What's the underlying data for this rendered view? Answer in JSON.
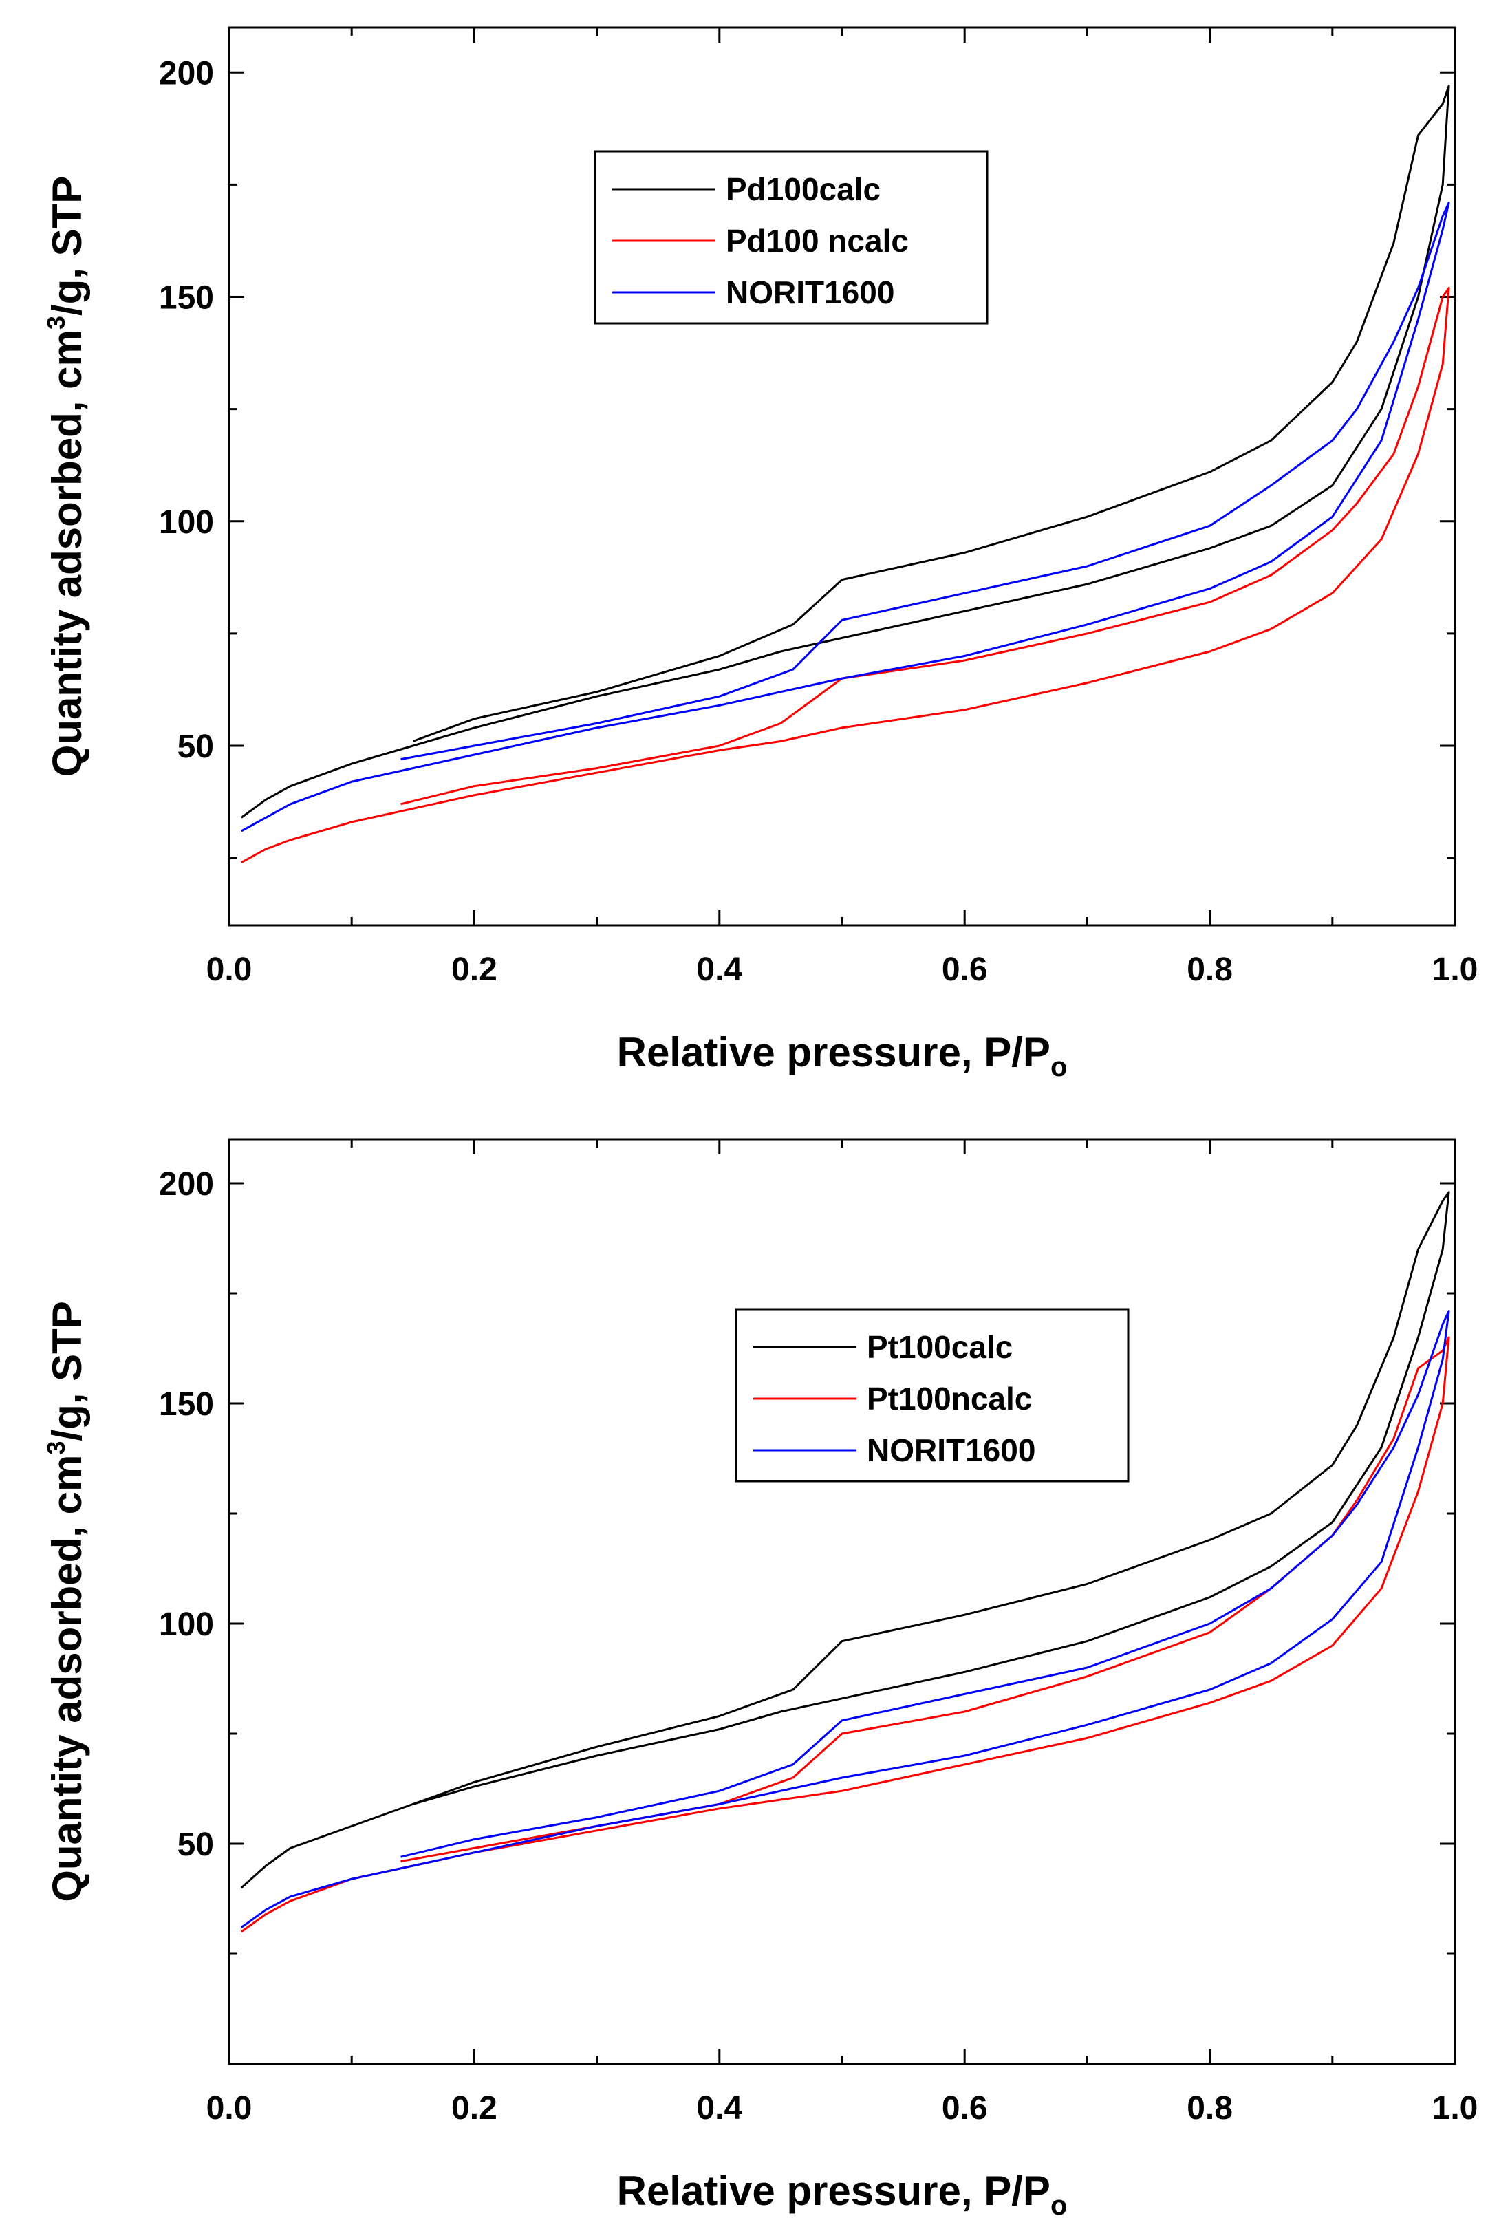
{
  "chart_data": [
    {
      "type": "line",
      "panel": "top",
      "xlabel": "Relative pressure, P/P",
      "xlabel_sub": "o",
      "ylabel_parts": [
        "Quantity adsorbed, cm",
        "3",
        "/g, STP"
      ],
      "xlim": [
        0.0,
        1.0
      ],
      "ylim": [
        10,
        210
      ],
      "xticks": [
        "0.0",
        "0.2",
        "0.4",
        "0.6",
        "0.8",
        "1.0"
      ],
      "yticks": [
        "50",
        "100",
        "150",
        "200"
      ],
      "legend_position": "top-center",
      "series": [
        {
          "name": "Pd100calc",
          "color": "#000000",
          "x": [
            0.01,
            0.03,
            0.05,
            0.1,
            0.15,
            0.2,
            0.3,
            0.4,
            0.45,
            0.5,
            0.6,
            0.7,
            0.8,
            0.85,
            0.9,
            0.94,
            0.97,
            0.99,
            0.995,
            0.99,
            0.97,
            0.95,
            0.92,
            0.9,
            0.85,
            0.8,
            0.7,
            0.6,
            0.5,
            0.46,
            0.4,
            0.3,
            0.2,
            0.15
          ],
          "y": [
            34,
            38,
            41,
            46,
            50,
            54,
            61,
            67,
            71,
            74,
            80,
            86,
            94,
            99,
            108,
            125,
            150,
            175,
            197,
            193,
            186,
            162,
            140,
            131,
            118,
            111,
            101,
            93,
            87,
            77,
            70,
            62,
            56,
            51
          ]
        },
        {
          "name": "Pd100 ncalc",
          "color": "#ff0000",
          "x": [
            0.01,
            0.03,
            0.05,
            0.1,
            0.15,
            0.2,
            0.3,
            0.4,
            0.45,
            0.5,
            0.6,
            0.7,
            0.8,
            0.85,
            0.9,
            0.94,
            0.97,
            0.99,
            0.995,
            0.99,
            0.97,
            0.95,
            0.92,
            0.9,
            0.85,
            0.8,
            0.7,
            0.6,
            0.5,
            0.45,
            0.4,
            0.3,
            0.2,
            0.14
          ],
          "y": [
            24,
            27,
            29,
            33,
            36,
            39,
            44,
            49,
            51,
            54,
            58,
            64,
            71,
            76,
            84,
            96,
            115,
            135,
            152,
            150,
            130,
            115,
            104,
            98,
            88,
            82,
            75,
            69,
            65,
            55,
            50,
            45,
            41,
            37
          ]
        },
        {
          "name": "NORIT1600",
          "color": "#0000ff",
          "x": [
            0.01,
            0.03,
            0.05,
            0.1,
            0.15,
            0.2,
            0.3,
            0.4,
            0.45,
            0.5,
            0.6,
            0.7,
            0.8,
            0.85,
            0.9,
            0.94,
            0.97,
            0.99,
            0.995,
            0.99,
            0.97,
            0.95,
            0.92,
            0.9,
            0.85,
            0.8,
            0.7,
            0.6,
            0.5,
            0.46,
            0.4,
            0.3,
            0.2,
            0.14
          ],
          "y": [
            31,
            34,
            37,
            42,
            45,
            48,
            54,
            59,
            62,
            65,
            70,
            77,
            85,
            91,
            101,
            118,
            145,
            165,
            171,
            168,
            152,
            140,
            125,
            118,
            108,
            99,
            90,
            84,
            78,
            67,
            61,
            55,
            50,
            47
          ]
        }
      ]
    },
    {
      "type": "line",
      "panel": "bottom",
      "xlabel": "Relative pressure, P/P",
      "xlabel_sub": "o",
      "ylabel_parts": [
        "Quantity adsorbed, cm",
        "3",
        "/g, STP"
      ],
      "xlim": [
        0.0,
        1.0
      ],
      "ylim": [
        0,
        210
      ],
      "xticks": [
        "0.0",
        "0.2",
        "0.4",
        "0.6",
        "0.8",
        "1.0"
      ],
      "yticks": [
        "50",
        "100",
        "150",
        "200"
      ],
      "legend_position": "center-right",
      "series": [
        {
          "name": "Pt100calc",
          "color": "#000000",
          "x": [
            0.01,
            0.03,
            0.05,
            0.1,
            0.15,
            0.2,
            0.3,
            0.4,
            0.45,
            0.5,
            0.6,
            0.7,
            0.8,
            0.85,
            0.9,
            0.94,
            0.97,
            0.99,
            0.995,
            0.99,
            0.97,
            0.95,
            0.92,
            0.9,
            0.85,
            0.8,
            0.7,
            0.6,
            0.5,
            0.46,
            0.4,
            0.3,
            0.2,
            0.15
          ],
          "y": [
            40,
            45,
            49,
            54,
            59,
            63,
            70,
            76,
            80,
            83,
            89,
            96,
            106,
            113,
            123,
            140,
            165,
            185,
            198,
            196,
            185,
            165,
            145,
            136,
            125,
            119,
            109,
            102,
            96,
            85,
            79,
            72,
            64,
            59
          ]
        },
        {
          "name": "Pt100ncalc",
          "color": "#ff0000",
          "x": [
            0.01,
            0.03,
            0.05,
            0.1,
            0.15,
            0.2,
            0.3,
            0.4,
            0.45,
            0.5,
            0.6,
            0.7,
            0.8,
            0.85,
            0.9,
            0.94,
            0.97,
            0.99,
            0.995,
            0.99,
            0.97,
            0.95,
            0.92,
            0.9,
            0.85,
            0.8,
            0.7,
            0.6,
            0.5,
            0.46,
            0.4,
            0.3,
            0.2,
            0.14
          ],
          "y": [
            30,
            34,
            37,
            42,
            45,
            48,
            53,
            58,
            60,
            62,
            68,
            74,
            82,
            87,
            95,
            108,
            130,
            150,
            165,
            162,
            158,
            142,
            128,
            120,
            108,
            98,
            88,
            80,
            75,
            65,
            59,
            54,
            49,
            46
          ]
        },
        {
          "name": "NORIT1600",
          "color": "#0000ff",
          "x": [
            0.01,
            0.03,
            0.05,
            0.1,
            0.15,
            0.2,
            0.3,
            0.4,
            0.45,
            0.5,
            0.6,
            0.7,
            0.8,
            0.85,
            0.9,
            0.94,
            0.97,
            0.99,
            0.995,
            0.99,
            0.97,
            0.95,
            0.92,
            0.9,
            0.85,
            0.8,
            0.7,
            0.6,
            0.5,
            0.46,
            0.4,
            0.3,
            0.2,
            0.14
          ],
          "y": [
            31,
            35,
            38,
            42,
            45,
            48,
            54,
            59,
            62,
            65,
            70,
            77,
            85,
            91,
            101,
            114,
            140,
            160,
            171,
            168,
            152,
            140,
            127,
            120,
            108,
            100,
            90,
            84,
            78,
            68,
            62,
            56,
            51,
            47
          ]
        }
      ]
    }
  ]
}
